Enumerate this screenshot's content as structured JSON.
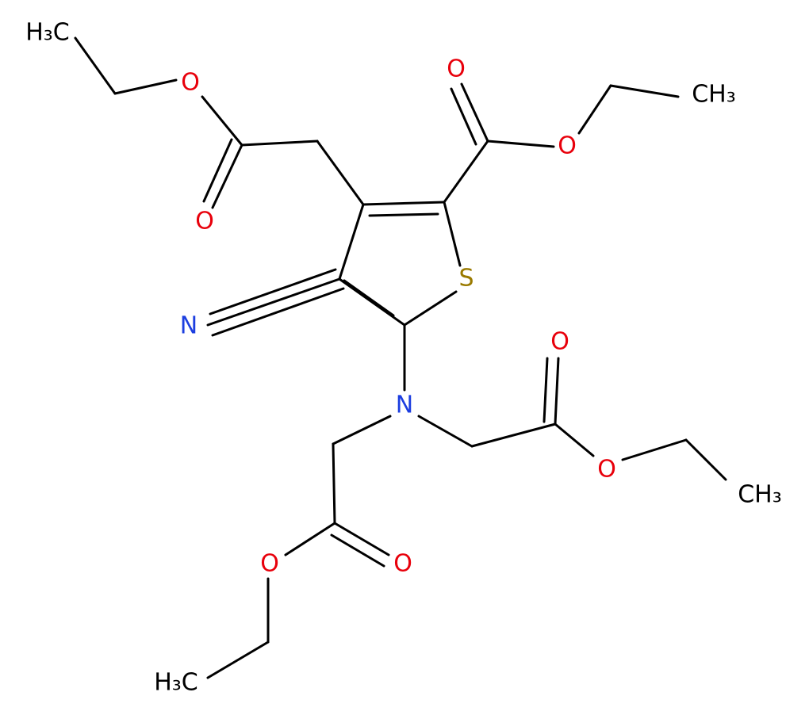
{
  "atoms": {
    "ch3_top_left": "H₃C",
    "o_ether_top_left": "O",
    "o_carbonyl_left": "O",
    "o_carbonyl_top": "O",
    "o_ether_top_right": "O",
    "ch3_top_right": "CH₃",
    "s_ring": "S",
    "n_cyano": "N",
    "n_amine": "N",
    "o_carbonyl_right": "O",
    "o_ether_right": "O",
    "ch3_right": "CH₃",
    "o_carbonyl_bottom": "O",
    "o_ether_bottom": "O",
    "ch3_bottom": "H₃C"
  }
}
